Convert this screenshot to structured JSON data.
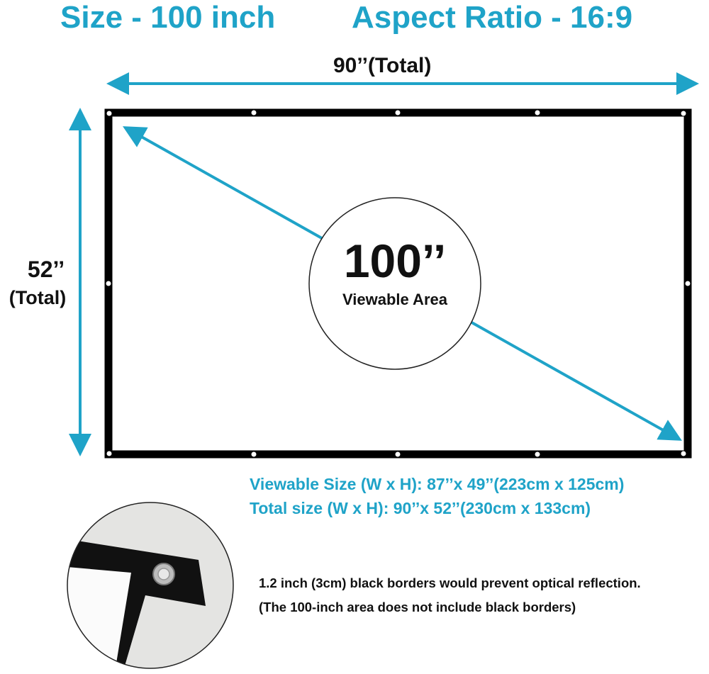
{
  "header": {
    "size_label": "Size - 100 inch",
    "aspect_label": "Aspect Ratio - 16:9"
  },
  "dimensions": {
    "width_label": "90’’(Total)",
    "height_value": "52’’",
    "height_note": "(Total)",
    "diagonal_value": "100’’",
    "diagonal_note": "Viewable Area"
  },
  "specs": {
    "viewable": "Viewable Size (W x H): 87’’x 49’’(223cm x 125cm)",
    "total": "Total size (W x H): 90’’x 52’’(230cm x 133cm)"
  },
  "notes": {
    "border": "1.2 inch (3cm) black borders would prevent optical reflection.",
    "exclusion": "(The 100-inch area does not include black borders)"
  },
  "colors": {
    "accent": "#1fa3c8",
    "border": "#000000"
  },
  "icons": {
    "grommet": "grommet-icon",
    "arrows": "double-headed-arrow"
  }
}
